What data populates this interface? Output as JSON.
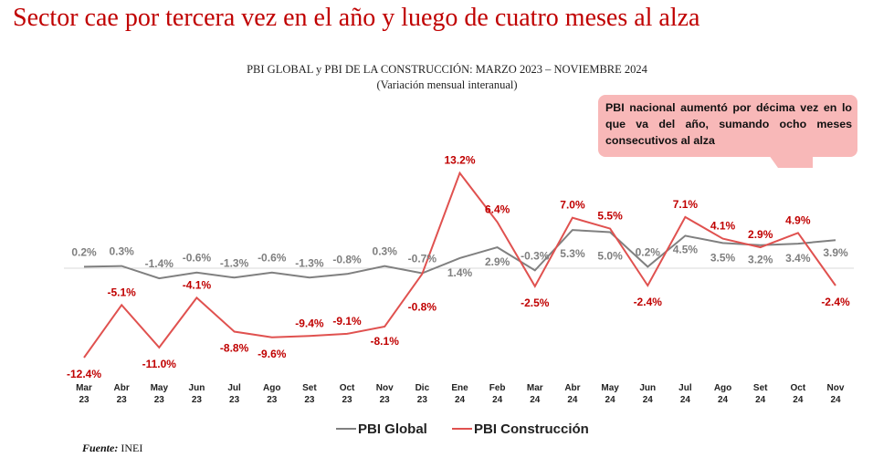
{
  "headline": "Sector cae por tercera vez en el año y luego de cuatro meses al alza",
  "chart_data": {
    "type": "line",
    "title": "PBI GLOBAL y PBI DE LA CONSTRUCCIÓN: MARZO 2023 – NOVIEMBRE 2024",
    "subtitle": "(Variación mensual interanual)",
    "xlabel": "",
    "ylabel": "",
    "categories": [
      "Mar 23",
      "Abr 23",
      "May 23",
      "Jun 23",
      "Jul 23",
      "Ago 23",
      "Set 23",
      "Oct 23",
      "Nov 23",
      "Dic 23",
      "Ene 24",
      "Feb 24",
      "Mar 24",
      "Abr 24",
      "May 24",
      "Jun 24",
      "Jul 24",
      "Ago 24",
      "Set 24",
      "Oct 24",
      "Nov 24"
    ],
    "series": [
      {
        "name": "PBI Global",
        "color": "#808080",
        "values": [
          0.2,
          0.3,
          -1.4,
          -0.6,
          -1.3,
          -0.6,
          -1.3,
          -0.8,
          0.3,
          -0.7,
          1.4,
          2.9,
          -0.3,
          5.3,
          5.0,
          0.2,
          4.5,
          3.5,
          3.2,
          3.4,
          3.9
        ],
        "labels": [
          "0.2%",
          "0.3%",
          "-1.4%",
          "-0.6%",
          "-1.3%",
          "-0.6%",
          "-1.3%",
          "-0.8%",
          "0.3%",
          "-0.7%",
          "1.4%",
          "2.9%",
          "-0.3%",
          "5.3%",
          "5.0%",
          "0.2%",
          "4.5%",
          "3.5%",
          "3.2%",
          "3.4%",
          "3.9%"
        ]
      },
      {
        "name": "PBI Construcción",
        "color": "#e0514f",
        "values": [
          -12.4,
          -5.1,
          -11.0,
          -4.1,
          -8.8,
          -9.6,
          -9.4,
          -9.1,
          -8.1,
          -0.8,
          13.2,
          6.4,
          -2.5,
          7.0,
          5.5,
          -2.4,
          7.1,
          4.1,
          2.9,
          4.9,
          -2.4
        ],
        "labels": [
          "-12.4%",
          "-5.1%",
          "-11.0%",
          "-4.1%",
          "-8.8%",
          "-9.6%",
          "-9.4%",
          "-9.1%",
          "-8.1%",
          "-0.8%",
          "13.2%",
          "6.4%",
          "-2.5%",
          "7.0%",
          "5.5%",
          "-2.4%",
          "7.1%",
          "4.1%",
          "2.9%",
          "4.9%",
          "-2.4%"
        ]
      }
    ],
    "grid": false,
    "legend": "bottom"
  },
  "callout": {
    "text": "PBI nacional aumentó por décima vez en lo que va del año, sumando ocho meses consecutivos al alza"
  },
  "source": {
    "label": "Fuente:",
    "value": "INEI"
  }
}
